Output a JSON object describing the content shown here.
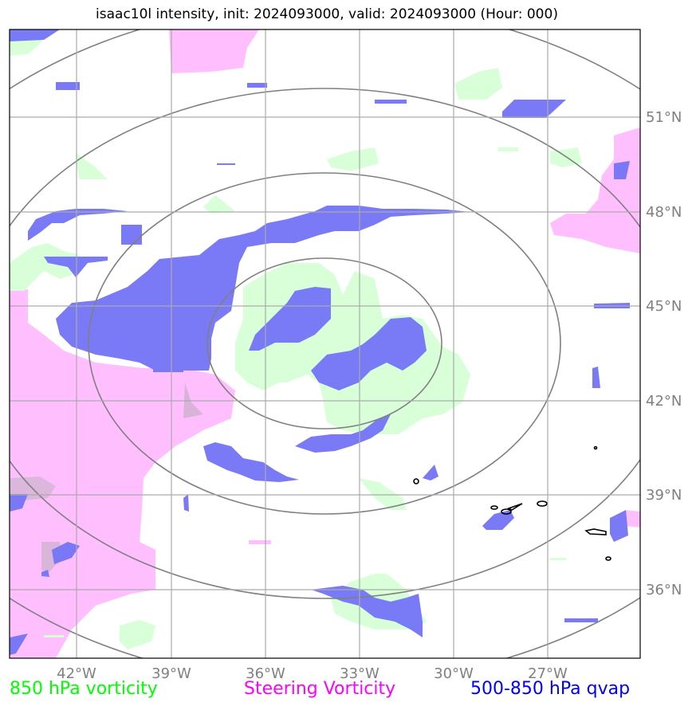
{
  "title": "isaac10l intensity, init: 2024093000, valid: 2024093000 (Hour: 000)",
  "colors": {
    "vorticity_850": "#00ff00",
    "steering_vorticity": "#ff00ff",
    "qvap_500_850": "#0000ff",
    "fill_green": "#d8ffd8",
    "fill_magenta": "#ffbfff",
    "fill_blue": "#7676f6",
    "grid": "#aaaaaa",
    "range_rings": "#808080",
    "tick_labels": "#808080"
  },
  "map": {
    "lon_ticks": [
      "42°W",
      "39°W",
      "36°W",
      "33°W",
      "30°W",
      "27°W"
    ],
    "lat_ticks": [
      "51°N",
      "48°N",
      "45°N",
      "42°N",
      "39°N",
      "36°N"
    ],
    "range_rings": 4
  },
  "legend": [
    {
      "label": "850 hPa vorticity",
      "color": "#00ff00"
    },
    {
      "label": "Steering Vorticity",
      "color": "#ff00ff"
    },
    {
      "label": "500-850 hPa qvap",
      "color": "#0000ff"
    }
  ]
}
